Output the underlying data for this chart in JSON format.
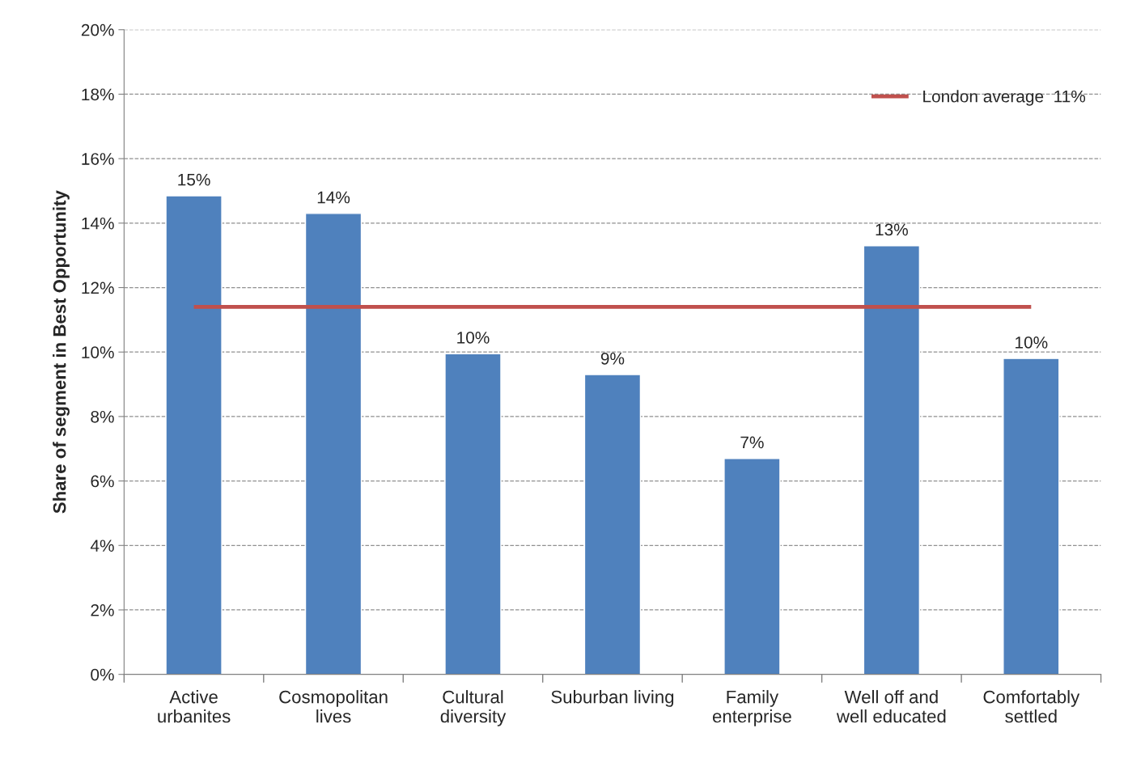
{
  "chart_data": {
    "type": "bar",
    "ylabel": "Share of segment in Best Opportunity",
    "categories": [
      "Active\nurbanites",
      "Cosmopolitan\nlives",
      "Cultural\ndiversity",
      "Suburban living",
      "Family\nenterprise",
      "Well off and\nwell educated",
      "Comfortably\nsettled"
    ],
    "values": [
      14.85,
      14.3,
      9.95,
      9.3,
      6.7,
      13.3,
      9.8
    ],
    "value_labels": [
      "15%",
      "14%",
      "10%",
      "9%",
      "7%",
      "13%",
      "10%"
    ],
    "color": "#4f81bd",
    "ylim": [
      0,
      20
    ],
    "yticks": [
      {
        "value": 0,
        "label": "0%"
      },
      {
        "value": 2,
        "label": "2%"
      },
      {
        "value": 4,
        "label": "4%"
      },
      {
        "value": 6,
        "label": "6%"
      },
      {
        "value": 8,
        "label": "8%"
      },
      {
        "value": 10,
        "label": "10%"
      },
      {
        "value": 12,
        "label": "12%"
      },
      {
        "value": 14,
        "label": "14%"
      },
      {
        "value": 16,
        "label": "16%"
      },
      {
        "value": 18,
        "label": "18%"
      },
      {
        "value": 20,
        "label": "20%"
      }
    ],
    "ref_lines": [
      {
        "axis": "y",
        "value": 11.4,
        "label": "London average  11%",
        "color": "#c0504d"
      }
    ],
    "grid": "y",
    "legend": "top right"
  }
}
